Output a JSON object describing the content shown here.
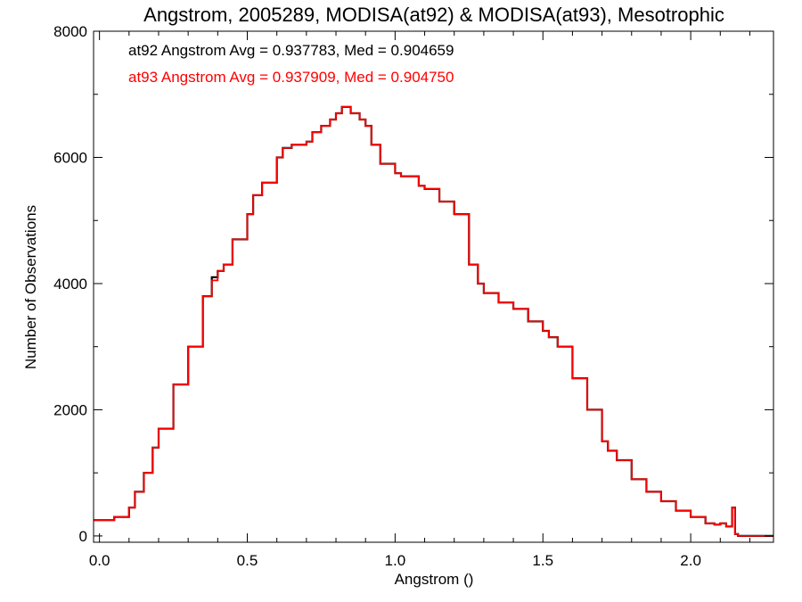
{
  "chart_data": {
    "type": "line",
    "title": "Angstrom, 2005289, MODISA(at92) & MODISA(at93), Mesotrophic",
    "xlabel": "Angstrom ()",
    "ylabel": "Number of Observations",
    "xlim": [
      -0.02,
      2.28
    ],
    "ylim": [
      -100,
      8000
    ],
    "x_ticks": [
      0.0,
      0.5,
      1.0,
      1.5,
      2.0
    ],
    "x_tick_labels": [
      "0.0",
      "0.5",
      "1.0",
      "1.5",
      "2.0"
    ],
    "y_ticks": [
      0,
      2000,
      4000,
      6000,
      8000
    ],
    "y_tick_labels": [
      "0",
      "2000",
      "4000",
      "6000",
      "8000"
    ],
    "grid": false,
    "step": "histogram",
    "annotations": [
      {
        "text": "at92 Angstrom Avg = 0.937783, Med = 0.904659",
        "color": "#000000"
      },
      {
        "text": "at93 Angstrom Avg = 0.937909, Med = 0.904750",
        "color": "#ff0000"
      }
    ],
    "series": [
      {
        "color": "#000000",
        "x": [
          -0.02,
          0.0,
          0.05,
          0.1,
          0.12,
          0.15,
          0.18,
          0.2,
          0.25,
          0.3,
          0.35,
          0.38,
          0.4,
          0.42,
          0.45,
          0.5,
          0.52,
          0.55,
          0.6,
          0.62,
          0.65,
          0.7,
          0.72,
          0.75,
          0.78,
          0.8,
          0.82,
          0.85,
          0.88,
          0.9,
          0.92,
          0.95,
          1.0,
          1.02,
          1.05,
          1.08,
          1.1,
          1.15,
          1.2,
          1.25,
          1.28,
          1.3,
          1.35,
          1.4,
          1.45,
          1.5,
          1.52,
          1.55,
          1.6,
          1.65,
          1.7,
          1.72,
          1.75,
          1.8,
          1.85,
          1.9,
          1.95,
          2.0,
          2.05,
          2.08,
          2.1,
          2.12,
          2.14,
          2.15,
          2.16,
          2.28
        ],
        "y": [
          250,
          250,
          300,
          450,
          700,
          1000,
          1400,
          1700,
          2400,
          3000,
          3800,
          4100,
          4200,
          4300,
          4700,
          5100,
          5400,
          5600,
          6000,
          6150,
          6200,
          6250,
          6400,
          6500,
          6600,
          6700,
          6800,
          6700,
          6600,
          6500,
          6200,
          5900,
          5750,
          5700,
          5700,
          5550,
          5500,
          5300,
          5100,
          4300,
          4000,
          3850,
          3700,
          3600,
          3400,
          3250,
          3150,
          3000,
          2500,
          2000,
          1500,
          1350,
          1200,
          900,
          700,
          550,
          400,
          300,
          200,
          180,
          200,
          150,
          450,
          30,
          0,
          0
        ]
      },
      {
        "color": "#ff0000",
        "x": [
          -0.02,
          0.0,
          0.05,
          0.1,
          0.12,
          0.15,
          0.18,
          0.2,
          0.25,
          0.3,
          0.35,
          0.38,
          0.4,
          0.42,
          0.45,
          0.5,
          0.52,
          0.55,
          0.6,
          0.62,
          0.65,
          0.7,
          0.72,
          0.75,
          0.78,
          0.8,
          0.82,
          0.85,
          0.88,
          0.9,
          0.92,
          0.95,
          1.0,
          1.02,
          1.05,
          1.08,
          1.1,
          1.15,
          1.2,
          1.25,
          1.28,
          1.3,
          1.35,
          1.4,
          1.45,
          1.5,
          1.52,
          1.55,
          1.6,
          1.65,
          1.7,
          1.72,
          1.75,
          1.8,
          1.85,
          1.9,
          1.95,
          2.0,
          2.05,
          2.08,
          2.1,
          2.12,
          2.14,
          2.15,
          2.16,
          2.28
        ],
        "y": [
          250,
          250,
          300,
          450,
          700,
          1000,
          1400,
          1700,
          2400,
          3000,
          3800,
          4050,
          4200,
          4300,
          4700,
          5100,
          5400,
          5600,
          6000,
          6150,
          6200,
          6250,
          6400,
          6500,
          6600,
          6700,
          6800,
          6700,
          6600,
          6500,
          6200,
          5900,
          5750,
          5700,
          5700,
          5550,
          5500,
          5300,
          5100,
          4300,
          4000,
          3850,
          3700,
          3600,
          3400,
          3250,
          3150,
          3000,
          2500,
          2000,
          1500,
          1350,
          1200,
          900,
          700,
          550,
          400,
          300,
          200,
          180,
          200,
          150,
          450,
          30,
          0,
          0
        ]
      }
    ]
  }
}
